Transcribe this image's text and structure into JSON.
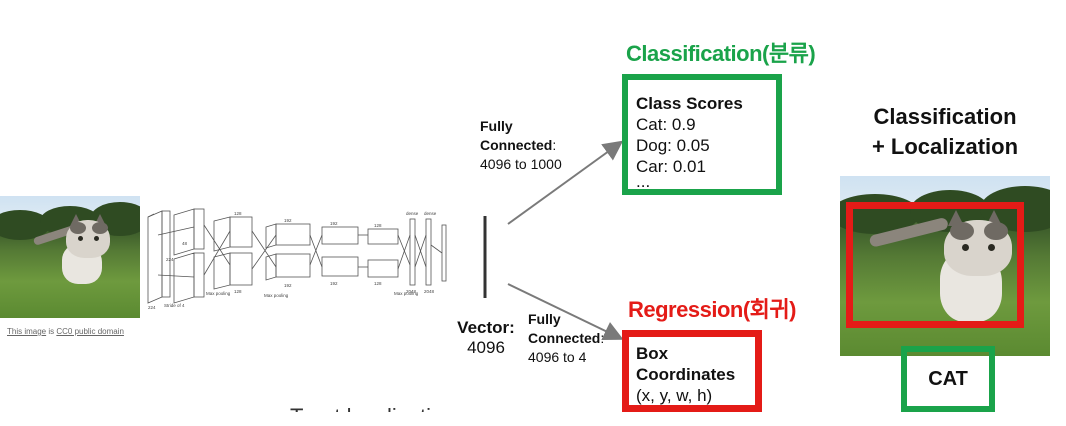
{
  "caption": {
    "prefix": "This image",
    "mid": " is ",
    "link": "CC0 public domain"
  },
  "network_labels": {
    "conv_a": "Stride of 4",
    "pool_a": "Max pooling",
    "pool_b": "Max pooling",
    "pool_c": "Max pooling",
    "dense_a": "dense",
    "dense_b": "dense",
    "dims": [
      "48",
      "128",
      "192",
      "192",
      "128",
      "2048",
      "2048",
      "128",
      "192",
      "192",
      "128",
      "224",
      "224"
    ]
  },
  "vector": {
    "label": "Vector:",
    "size": "4096"
  },
  "fc_top": {
    "line1": "Fully",
    "line2": "Connected",
    "suffix": ":",
    "line3": "4096 to 1000"
  },
  "fc_bottom": {
    "line1": "Fully",
    "line2": "Connected",
    "suffix": ":",
    "line3": "4096 to 4"
  },
  "classification": {
    "title": "Classification(분류)",
    "heading": "Class Scores",
    "rows": [
      "Cat: 0.9",
      "Dog: 0.05",
      "Car: 0.01"
    ],
    "more": "..."
  },
  "regression": {
    "title": "Regression(회귀)",
    "line1": "Box",
    "line2": "Coordinates",
    "line3": "(x, y, w, h)"
  },
  "result": {
    "line1": "Classification",
    "line2": "+ Localization",
    "label": "CAT"
  },
  "faded": "Treat localization",
  "colors": {
    "green": "#1aa34a",
    "red": "#e41b17",
    "arrow": "#7a7a7a"
  }
}
